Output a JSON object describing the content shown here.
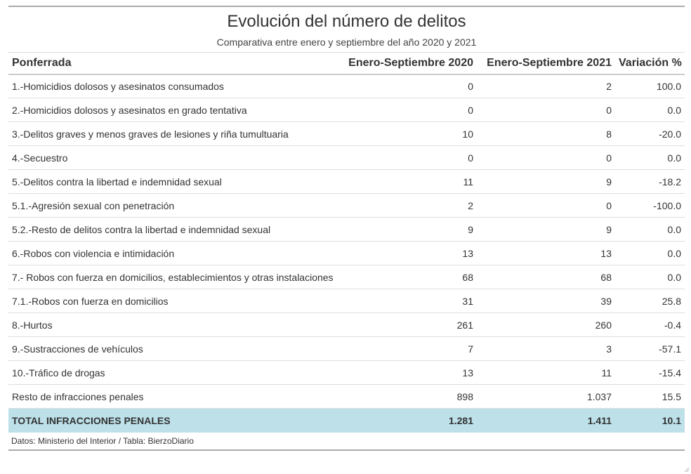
{
  "chart_data": {
    "type": "table",
    "title": "Evolución del número de delitos",
    "subtitle": "Comparativa entre enero y septiembre del año 2020 y 2021",
    "columns": [
      "Ponferrada",
      "Enero-Septiembre 2020",
      "Enero-Septiembre 2021",
      "Variación %"
    ],
    "rows": [
      [
        "1.-Homicidios dolosos y asesinatos consumados",
        "0",
        "2",
        "100.0"
      ],
      [
        "2.-Homicidios dolosos y asesinatos en grado tentativa",
        "0",
        "0",
        "0.0"
      ],
      [
        "3.-Delitos graves y menos graves de lesiones y riña tumultuaria",
        "10",
        "8",
        "-20.0"
      ],
      [
        "4.-Secuestro",
        "0",
        "0",
        "0.0"
      ],
      [
        "5.-Delitos contra la libertad e indemnidad sexual",
        "11",
        "9",
        "-18.2"
      ],
      [
        "5.1.-Agresión sexual con penetración",
        "2",
        "0",
        "-100.0"
      ],
      [
        "5.2.-Resto de delitos contra la libertad e indemnidad sexual",
        "9",
        "9",
        "0.0"
      ],
      [
        "6.-Robos con violencia e intimidación",
        "13",
        "13",
        "0.0"
      ],
      [
        "7.- Robos con fuerza en domicilios, establecimientos y otras instalaciones",
        "68",
        "68",
        "0.0"
      ],
      [
        "7.1.-Robos con fuerza en domicilios",
        "31",
        "39",
        "25.8"
      ],
      [
        "8.-Hurtos",
        "261",
        "260",
        "-0.4"
      ],
      [
        "9.-Sustracciones de vehículos",
        "7",
        "3",
        "-57.1"
      ],
      [
        "10.-Tráfico de drogas",
        "13",
        "11",
        "-15.4"
      ],
      [
        "Resto de infracciones penales",
        "898",
        "1.037",
        "15.5"
      ]
    ],
    "total_row": [
      "TOTAL INFRACCIONES PENALES",
      "1.281",
      "1.411",
      "10.1"
    ],
    "source": "Datos: Ministerio del Interior / Tabla: BierzoDiario",
    "highlight_color": "#bde0e9"
  }
}
